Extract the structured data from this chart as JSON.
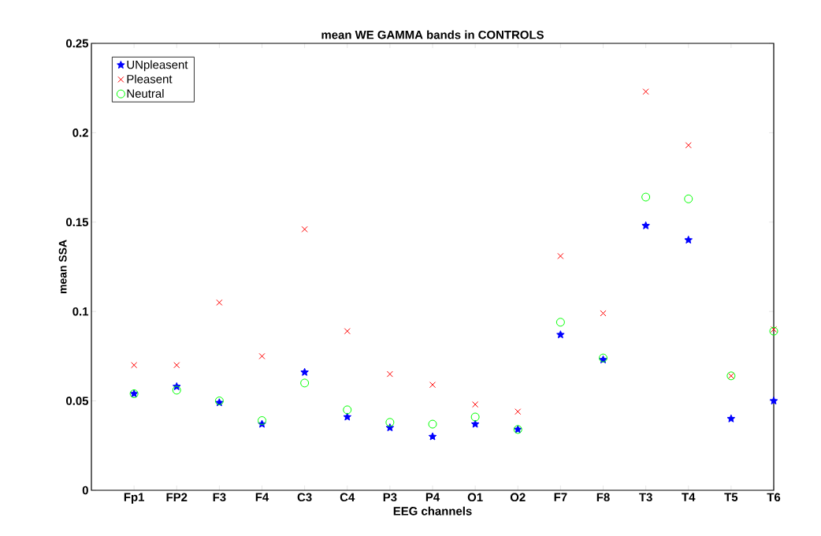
{
  "chart_data": {
    "type": "scatter",
    "title": "mean WE  GAMMA bands in CONTROLS",
    "xlabel": "EEG channels",
    "ylabel": "mean SSA",
    "categories": [
      "Fp1",
      "FP2",
      "F3",
      "F4",
      "C3",
      "C4",
      "P3",
      "P4",
      "O1",
      "O2",
      "F7",
      "F8",
      "T3",
      "T4",
      "T5",
      "T6"
    ],
    "series": [
      {
        "name": "UNpleasent",
        "color": "#0000ff",
        "marker": "star",
        "values": [
          0.054,
          0.058,
          0.049,
          0.037,
          0.066,
          0.041,
          0.035,
          0.03,
          0.037,
          0.034,
          0.087,
          0.073,
          0.148,
          0.14,
          0.04,
          0.05
        ]
      },
      {
        "name": "Pleasent",
        "color": "#ff0000",
        "marker": "cross",
        "values": [
          0.07,
          0.07,
          0.105,
          0.075,
          0.146,
          0.089,
          0.065,
          0.059,
          0.048,
          0.044,
          0.131,
          0.099,
          0.223,
          0.193,
          0.064,
          0.09
        ]
      },
      {
        "name": "Neutral",
        "color": "#00ff00",
        "marker": "circle",
        "values": [
          0.054,
          0.056,
          0.05,
          0.039,
          0.06,
          0.045,
          0.038,
          0.037,
          0.041,
          0.034,
          0.094,
          0.074,
          0.164,
          0.163,
          0.064,
          0.089
        ]
      }
    ],
    "ylim": [
      0,
      0.25
    ],
    "yticks": [
      0,
      0.05,
      0.1,
      0.15,
      0.2,
      0.25
    ],
    "grid": false,
    "legend": "top left"
  }
}
